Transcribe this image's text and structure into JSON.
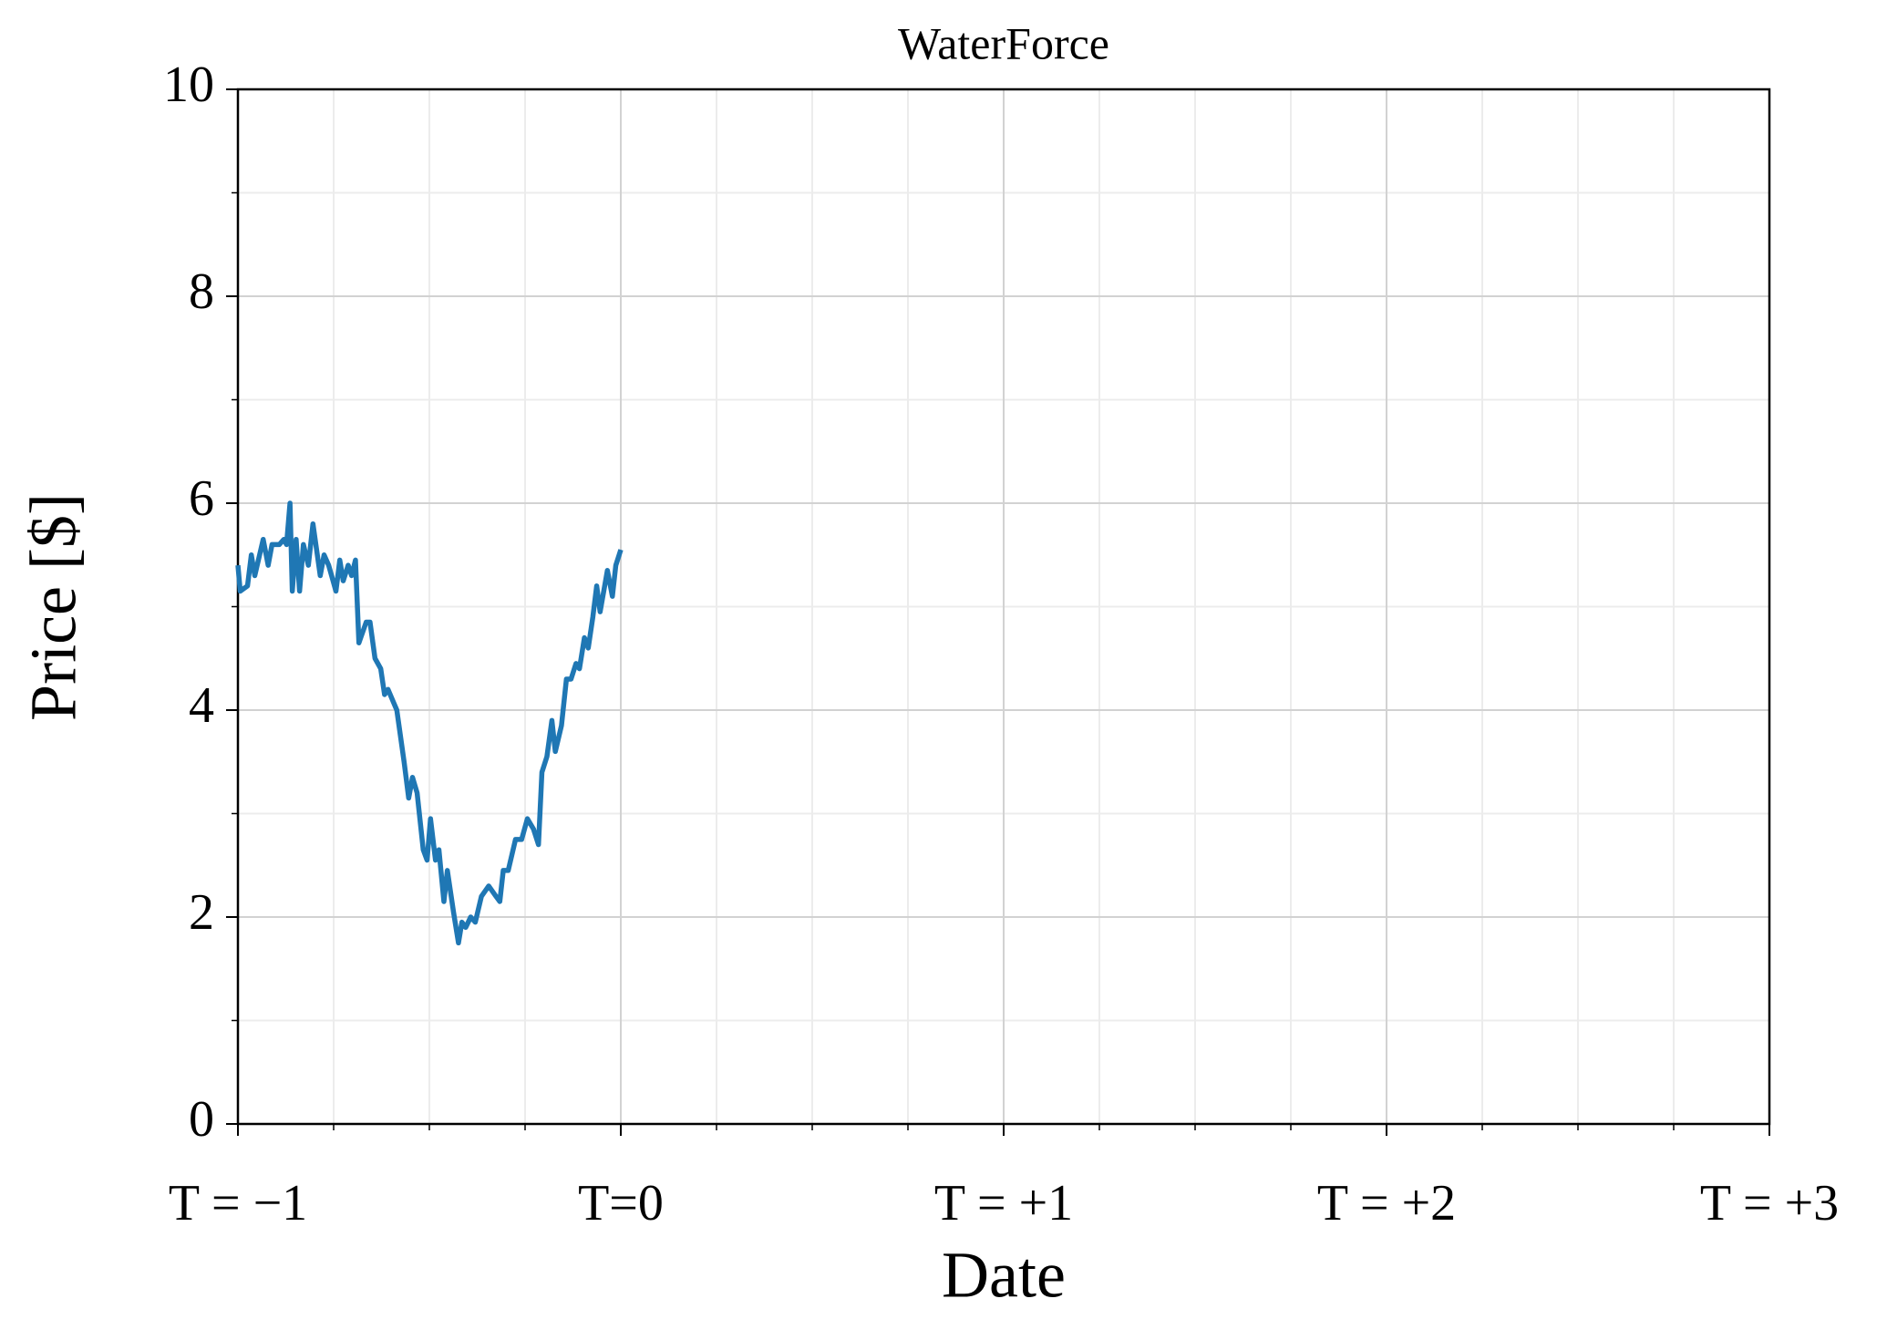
{
  "chart_data": {
    "type": "line",
    "title": "WaterForce",
    "xlabel": "Date",
    "ylabel": "Price [$]",
    "x": [
      -1,
      -0.994,
      -0.975,
      -0.965,
      -0.956,
      -0.934,
      -0.921,
      -0.911,
      -0.892,
      -0.88,
      -0.873,
      -0.864,
      -0.858,
      -0.848,
      -0.839,
      -0.829,
      -0.816,
      -0.804,
      -0.785,
      -0.775,
      -0.763,
      -0.744,
      -0.734,
      -0.725,
      -0.712,
      -0.703,
      -0.693,
      -0.684,
      -0.665,
      -0.655,
      -0.642,
      -0.627,
      -0.617,
      -0.608,
      -0.585,
      -0.566,
      -0.554,
      -0.544,
      -0.532,
      -0.516,
      -0.506,
      -0.497,
      -0.484,
      -0.475,
      -0.462,
      -0.453,
      -0.437,
      -0.424,
      -0.415,
      -0.405,
      -0.392,
      -0.38,
      -0.364,
      -0.345,
      -0.326,
      -0.316,
      -0.307,
      -0.294,
      -0.275,
      -0.259,
      -0.244,
      -0.228,
      -0.215,
      -0.206,
      -0.193,
      -0.18,
      -0.171,
      -0.155,
      -0.142,
      -0.13,
      -0.117,
      -0.108,
      -0.095,
      -0.085,
      -0.073,
      -0.063,
      -0.054,
      -0.035,
      -0.022,
      -0.013,
      0
    ],
    "series": [
      {
        "color": "#1f77b4",
        "values": [
          5.4,
          5.15,
          5.2,
          5.5,
          5.3,
          5.65,
          5.4,
          5.6,
          5.6,
          5.65,
          5.6,
          6.0,
          5.15,
          5.65,
          5.15,
          5.6,
          5.4,
          5.8,
          5.3,
          5.5,
          5.4,
          5.15,
          5.45,
          5.25,
          5.4,
          5.3,
          5.45,
          4.65,
          4.85,
          4.85,
          4.5,
          4.4,
          4.15,
          4.2,
          4.0,
          3.5,
          3.15,
          3.35,
          3.2,
          2.65,
          2.55,
          2.95,
          2.55,
          2.65,
          2.15,
          2.45,
          2.05,
          1.75,
          1.95,
          1.9,
          2.0,
          1.95,
          2.2,
          2.3,
          2.2,
          2.15,
          2.45,
          2.45,
          2.75,
          2.75,
          2.95,
          2.85,
          2.7,
          3.4,
          3.55,
          3.9,
          3.6,
          3.85,
          4.3,
          4.3,
          4.45,
          4.4,
          4.7,
          4.6,
          4.9,
          5.2,
          4.95,
          5.35,
          5.1,
          5.4,
          5.55
        ]
      }
    ],
    "xlim": [
      -1,
      3
    ],
    "ylim": [
      0,
      10
    ],
    "xticks": [
      {
        "value": -1,
        "label": "T = −1"
      },
      {
        "value": 0,
        "label": "T=0"
      },
      {
        "value": 1,
        "label": "T = +1"
      },
      {
        "value": 2,
        "label": "T = +2"
      },
      {
        "value": 3,
        "label": "T = +3"
      }
    ],
    "yticks": [
      0,
      2,
      4,
      6,
      8,
      10
    ],
    "xminorticks": [
      -0.75,
      -0.5,
      -0.25,
      0.25,
      0.5,
      0.75,
      1.25,
      1.5,
      1.75,
      2.25,
      2.5,
      2.75
    ],
    "yminorticks": [
      1,
      3,
      5,
      7,
      9
    ],
    "grid": true
  }
}
